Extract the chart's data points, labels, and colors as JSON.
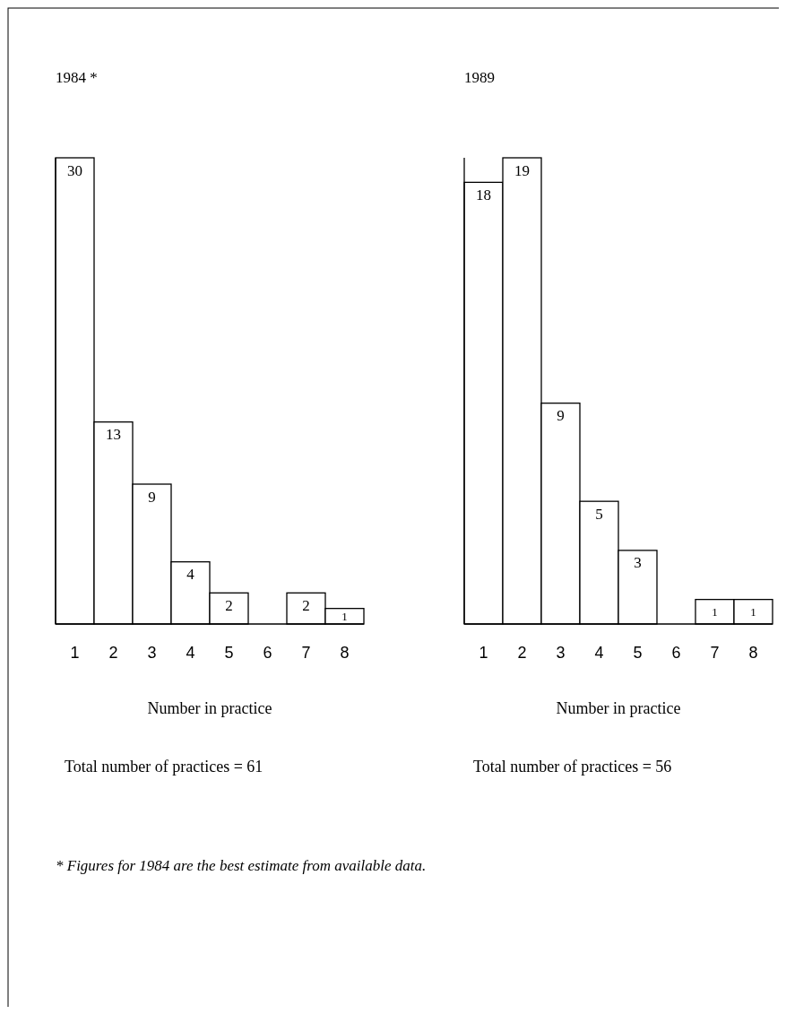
{
  "chart_data": [
    {
      "type": "bar",
      "title": "1984 *",
      "categories": [
        "1",
        "2",
        "3",
        "4",
        "5",
        "6",
        "7",
        "8"
      ],
      "values": [
        30,
        13,
        9,
        4,
        2,
        null,
        2,
        1
      ],
      "data_labels": true,
      "color": "#ffffff",
      "xlabel": "Number in practice",
      "annotations": [
        "Total number of practices = 61",
        "* Figures for 1984 are the best estimate from available data."
      ]
    },
    {
      "type": "bar",
      "title": "1989",
      "categories": [
        "1",
        "2",
        "3",
        "4",
        "5",
        "6",
        "7",
        "8"
      ],
      "values": [
        18,
        19,
        9,
        5,
        3,
        null,
        1,
        1
      ],
      "data_labels": true,
      "color": "#ffffff",
      "xlabel": "Number in practice",
      "annotations": [
        "Total number of practices = 56"
      ]
    }
  ]
}
